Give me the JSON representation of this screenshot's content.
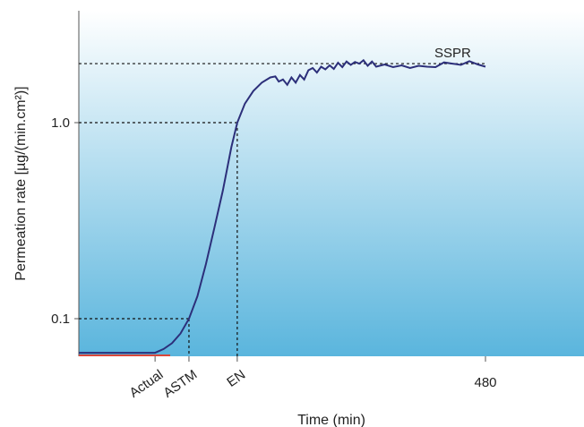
{
  "chart_data": {
    "type": "line",
    "title": "",
    "xlabel": "Time (min)",
    "ylabel": "Permeation rate [µg/(min.cm²)]",
    "y_scale": "log",
    "y_ticks": [
      {
        "value": 0.1,
        "label": "0.1"
      },
      {
        "value": 1.0,
        "label": "1.0"
      }
    ],
    "x_ticks": [
      {
        "value": 480,
        "label": "480"
      }
    ],
    "x_markers": [
      {
        "label": "Actual",
        "x": 90,
        "y": 0.067
      },
      {
        "label": "ASTM",
        "x": 130,
        "y": 0.1
      },
      {
        "label": "EN",
        "x": 187,
        "y": 1.0
      }
    ],
    "reference_lines": [
      {
        "label": "SSPR",
        "y": 2.0
      }
    ],
    "grid": false,
    "colors": {
      "curve": "#2c2f7a",
      "baseline": "#d9473a",
      "gradient_top": "#ffffff",
      "gradient_bottom": "#5ab5dd"
    },
    "series": [
      {
        "points": [
          [
            0,
            0.067
          ],
          [
            83,
            0.067
          ],
          [
            90,
            0.067
          ],
          [
            100,
            0.07
          ],
          [
            110,
            0.075
          ],
          [
            120,
            0.084
          ],
          [
            130,
            0.1
          ],
          [
            140,
            0.13
          ],
          [
            150,
            0.19
          ],
          [
            160,
            0.29
          ],
          [
            170,
            0.45
          ],
          [
            180,
            0.75
          ],
          [
            187,
            1.0
          ],
          [
            196,
            1.25
          ],
          [
            206,
            1.45
          ],
          [
            216,
            1.6
          ],
          [
            226,
            1.7
          ],
          [
            232,
            1.72
          ],
          [
            236,
            1.62
          ],
          [
            241,
            1.66
          ],
          [
            246,
            1.56
          ],
          [
            251,
            1.7
          ],
          [
            256,
            1.6
          ],
          [
            261,
            1.75
          ],
          [
            266,
            1.66
          ],
          [
            271,
            1.85
          ],
          [
            276,
            1.9
          ],
          [
            281,
            1.8
          ],
          [
            286,
            1.93
          ],
          [
            291,
            1.87
          ],
          [
            296,
            1.96
          ],
          [
            301,
            1.88
          ],
          [
            306,
            2.02
          ],
          [
            311,
            1.92
          ],
          [
            316,
            2.05
          ],
          [
            321,
            1.97
          ],
          [
            326,
            2.04
          ],
          [
            331,
            2.0
          ],
          [
            336,
            2.08
          ],
          [
            341,
            1.95
          ],
          [
            346,
            2.05
          ],
          [
            351,
            1.93
          ],
          [
            361,
            1.98
          ],
          [
            371,
            1.92
          ],
          [
            381,
            1.96
          ],
          [
            391,
            1.9
          ],
          [
            401,
            1.95
          ],
          [
            411,
            1.93
          ],
          [
            421,
            1.92
          ],
          [
            431,
            2.03
          ],
          [
            441,
            2.0
          ],
          [
            451,
            1.97
          ],
          [
            461,
            2.06
          ],
          [
            471,
            1.98
          ],
          [
            480,
            1.93
          ]
        ]
      }
    ]
  }
}
